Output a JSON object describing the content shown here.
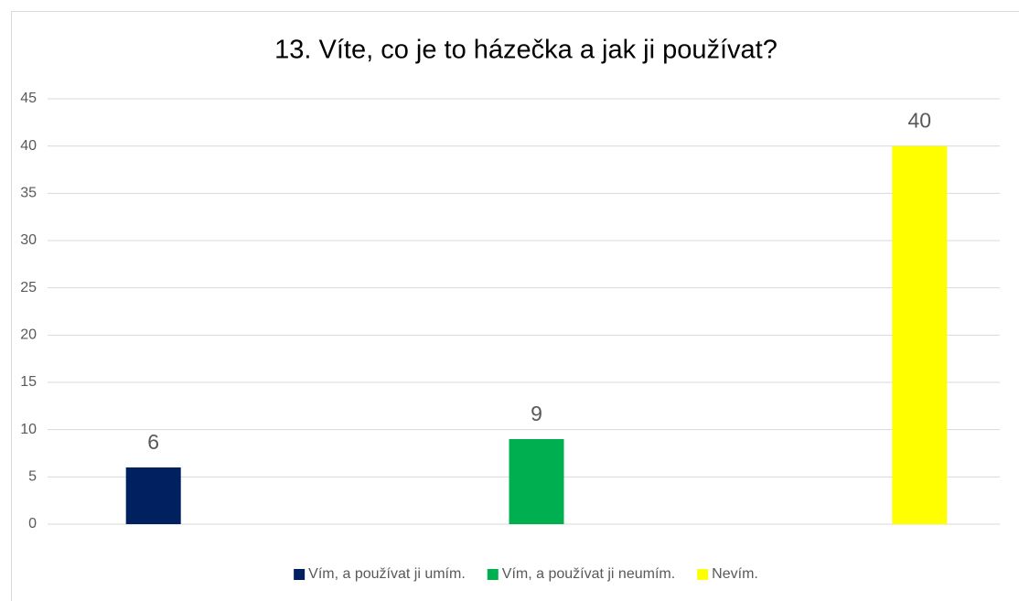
{
  "chart_data": {
    "type": "bar",
    "title": "13. Víte, co je to házečka a jak ji používat?",
    "categories": [
      null
    ],
    "series": [
      {
        "name": "Vím, a používat ji umím.",
        "color": "#002060",
        "values": [
          6
        ]
      },
      {
        "name": "Vím, a používat ji neumím.",
        "color": "#00b050",
        "values": [
          9
        ]
      },
      {
        "name": "Nevím.",
        "color": "#ffff00",
        "values": [
          40
        ]
      }
    ],
    "ylim": [
      0,
      45
    ],
    "yticks": [
      0,
      5,
      10,
      15,
      20,
      25,
      30,
      35,
      40,
      45
    ],
    "grid": true,
    "legend": "bottom"
  }
}
